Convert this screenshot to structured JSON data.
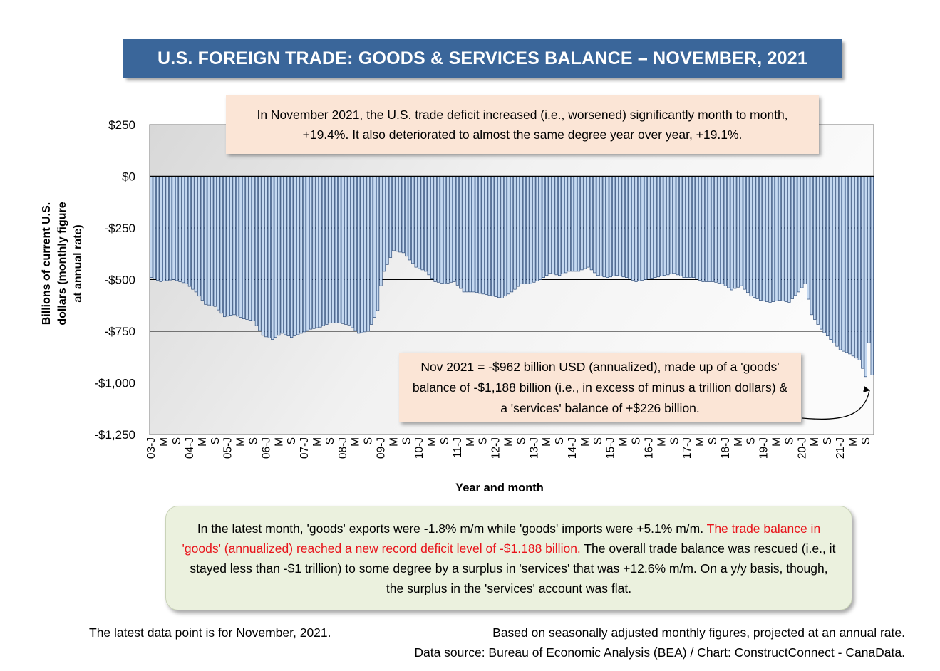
{
  "title": "U.S. FOREIGN TRADE: GOODS & SERVICES BALANCE – NOVEMBER, 2021",
  "annotations": {
    "top": "In November 2021, the U.S. trade deficit increased (i.e., worsened) significantly month to month, +19.4%. It also deteriorated to almost the same degree year over year, +19.1%.",
    "nov_box": "Nov 2021  = -$962 billion USD (annualized), made up of a 'goods' balance of -$1,188 billion (i.e., in excess of minus a trillion dollars) & a 'services' balance of +$226 billion.",
    "bottom_part1": "In the latest month, 'goods' exports were -1.8% m/m while 'goods' imports were +5.1% m/m. ",
    "bottom_part2_red": "The trade balance in 'goods' (annualized) reached a new record deficit level of -$1.188 billion.",
    "bottom_part3": " The overall trade balance was rescued (i.e., it stayed less than -$1 trillion) to some degree by a surplus in 'services' that was +12.6% m/m. On a y/y basis, though, the surplus in the 'services' account was flat."
  },
  "footer": {
    "latest": "The latest data point is for November, 2021.",
    "basis": "Based on seasonally adjusted monthly figures, projected at an annual rate.",
    "source": "Data source: Bureau of Economic Analysis (BEA) / Chart: ConstructConnect - CanaData."
  },
  "colors": {
    "banner": "#3a669a",
    "bar_fill": "#c5d9f1",
    "bar_stroke": "#2b4a78",
    "highlight": "#e8141b"
  },
  "chart_data": {
    "type": "bar",
    "xlabel": "Year and month",
    "ylabel": "Billions of current U.S. dollars (monthly figure at annual rate)",
    "ylim": [
      -1250,
      250
    ],
    "y_ticks": [
      250,
      0,
      -250,
      -500,
      -750,
      -1000,
      -1250
    ],
    "y_tick_labels": [
      "$250",
      "$0",
      "-$250",
      "-$500",
      "-$750",
      "-$1,000",
      "-$1,250"
    ],
    "grid": "horizontal",
    "x_tick_labels": [
      "03-J",
      "M",
      "S",
      "04-J",
      "M",
      "S",
      "05-J",
      "M",
      "S",
      "06-J",
      "M",
      "S",
      "07-J",
      "M",
      "S",
      "08-J",
      "M",
      "S",
      "09-J",
      "M",
      "S",
      "10-J",
      "M",
      "S",
      "11-J",
      "M",
      "S",
      "12-J",
      "M",
      "S",
      "13-J",
      "M",
      "S",
      "14-J",
      "M",
      "S",
      "15-J",
      "M",
      "S",
      "16-J",
      "M",
      "S",
      "17-J",
      "M",
      "S",
      "18-J",
      "M",
      "S",
      "19-J",
      "M",
      "S",
      "20-J",
      "M",
      "S",
      "21-J",
      "M",
      "S"
    ],
    "start": "2003-01",
    "end": "2021-11",
    "anchors": [
      [
        "2003-01",
        -490
      ],
      [
        "2003-04",
        -510
      ],
      [
        "2003-08",
        -500
      ],
      [
        "2003-12",
        -520
      ],
      [
        "2004-03",
        -560
      ],
      [
        "2004-06",
        -620
      ],
      [
        "2004-09",
        -630
      ],
      [
        "2004-12",
        -680
      ],
      [
        "2005-03",
        -670
      ],
      [
        "2005-06",
        -690
      ],
      [
        "2005-09",
        -700
      ],
      [
        "2005-12",
        -770
      ],
      [
        "2006-03",
        -790
      ],
      [
        "2006-06",
        -760
      ],
      [
        "2006-09",
        -780
      ],
      [
        "2006-12",
        -760
      ],
      [
        "2007-03",
        -740
      ],
      [
        "2007-06",
        -730
      ],
      [
        "2007-09",
        -710
      ],
      [
        "2007-12",
        -710
      ],
      [
        "2008-03",
        -720
      ],
      [
        "2008-06",
        -760
      ],
      [
        "2008-09",
        -750
      ],
      [
        "2008-12",
        -650
      ],
      [
        "2009-01",
        -530
      ],
      [
        "2009-02",
        -460
      ],
      [
        "2009-05",
        -360
      ],
      [
        "2009-08",
        -370
      ],
      [
        "2009-12",
        -440
      ],
      [
        "2010-03",
        -460
      ],
      [
        "2010-06",
        -510
      ],
      [
        "2010-09",
        -520
      ],
      [
        "2010-12",
        -510
      ],
      [
        "2011-03",
        -560
      ],
      [
        "2011-06",
        -560
      ],
      [
        "2011-09",
        -570
      ],
      [
        "2011-12",
        -580
      ],
      [
        "2012-03",
        -590
      ],
      [
        "2012-06",
        -560
      ],
      [
        "2012-09",
        -520
      ],
      [
        "2012-12",
        -520
      ],
      [
        "2013-03",
        -500
      ],
      [
        "2013-06",
        -470
      ],
      [
        "2013-09",
        -480
      ],
      [
        "2013-12",
        -460
      ],
      [
        "2014-03",
        -460
      ],
      [
        "2014-06",
        -440
      ],
      [
        "2014-09",
        -480
      ],
      [
        "2014-12",
        -490
      ],
      [
        "2015-03",
        -480
      ],
      [
        "2015-06",
        -490
      ],
      [
        "2015-09",
        -510
      ],
      [
        "2015-12",
        -500
      ],
      [
        "2016-03",
        -490
      ],
      [
        "2016-06",
        -480
      ],
      [
        "2016-09",
        -470
      ],
      [
        "2016-12",
        -490
      ],
      [
        "2017-03",
        -490
      ],
      [
        "2017-06",
        -510
      ],
      [
        "2017-09",
        -510
      ],
      [
        "2017-12",
        -520
      ],
      [
        "2018-03",
        -550
      ],
      [
        "2018-06",
        -530
      ],
      [
        "2018-09",
        -580
      ],
      [
        "2018-12",
        -600
      ],
      [
        "2019-03",
        -610
      ],
      [
        "2019-06",
        -600
      ],
      [
        "2019-09",
        -610
      ],
      [
        "2019-12",
        -560
      ],
      [
        "2020-02",
        -520
      ],
      [
        "2020-04",
        -670
      ],
      [
        "2020-07",
        -740
      ],
      [
        "2020-10",
        -790
      ],
      [
        "2021-01",
        -840
      ],
      [
        "2021-04",
        -860
      ],
      [
        "2021-07",
        -890
      ],
      [
        "2021-09",
        -970
      ],
      [
        "2021-10",
        -806
      ],
      [
        "2021-11",
        -962
      ]
    ]
  }
}
